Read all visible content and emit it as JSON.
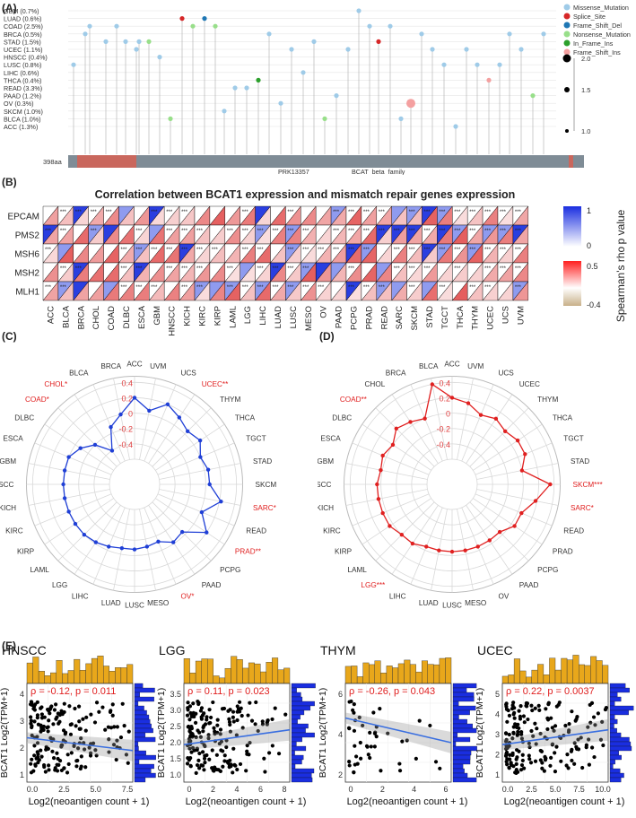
{
  "panels": {
    "A": {
      "label": "(A)",
      "cancers": [
        "GBM (0.7%)",
        "LUAD (0.6%)",
        "COAD (2.5%)",
        "BRCA (0.5%)",
        "STAD (1.5%)",
        "UCEC (1.1%)",
        "HNSCC (0.4%)",
        "LUSC (0.8%)",
        "LIHC (0.6%)",
        "THCA (0.4%)",
        "READ (3.3%)",
        "PAAD (1.2%)",
        "OV (0.3%)",
        "SKCM (1.0%)",
        "BLCA (1.0%)",
        "ACC (1.3%)"
      ],
      "legend": [
        {
          "label": "Missense_Mutation",
          "color": "#9fcbe8"
        },
        {
          "label": "Splice_Site",
          "color": "#d62728"
        },
        {
          "label": "Frame_Shift_Del",
          "color": "#1f77b4"
        },
        {
          "label": "Nonsense_Mutation",
          "color": "#98df8a"
        },
        {
          "label": "In_Frame_Ins",
          "color": "#2ca02c"
        },
        {
          "label": "Frame_Shift_Ins",
          "color": "#f4a0a0"
        }
      ],
      "size_legend": [
        "2.0",
        "1.5",
        "1.0"
      ],
      "protein_length": "398aa",
      "domains": [
        "PRK13357",
        "BCAT_beta_family"
      ]
    },
    "B": {
      "label": "(B)",
      "title": "Correlation between BCAT1 expression and mismatch repair genes expression",
      "genes": [
        "EPCAM",
        "PMS2",
        "MSH6",
        "MSH2",
        "MLH1"
      ],
      "cancers": [
        "ACC",
        "BLCA",
        "BRCA",
        "CHOL",
        "COAD",
        "DLBC",
        "ESCA",
        "GBM",
        "HNSCC",
        "KICH",
        "KIRC",
        "KIRP",
        "LAML",
        "LGG",
        "LIHC",
        "LUAD",
        "LUSC",
        "MESO",
        "OV",
        "PAAD",
        "PCPG",
        "PRAD",
        "READ",
        "SARC",
        "SKCM",
        "STAD",
        "TGCT",
        "THCA",
        "THYM",
        "UCEC",
        "UCS",
        "UVM"
      ],
      "pvalue_legend": {
        "title": "p value",
        "max": "1",
        "min": "0"
      },
      "rho_legend": {
        "title": "Spearman's rho",
        "max": "0.5",
        "min": "-0.4"
      },
      "stars_label": "***"
    },
    "C": {
      "label": "(C)",
      "rings": [
        "0.4",
        "0.2",
        "0",
        "-0.2",
        "-0.4"
      ],
      "axes": [
        {
          "name": "ACC",
          "red": false
        },
        {
          "name": "UVM",
          "red": false
        },
        {
          "name": "UCS",
          "red": false
        },
        {
          "name": "UCEC**",
          "red": true
        },
        {
          "name": "THYM",
          "red": false
        },
        {
          "name": "THCA",
          "red": false
        },
        {
          "name": "TGCT",
          "red": false
        },
        {
          "name": "STAD",
          "red": false
        },
        {
          "name": "SKCM",
          "red": false
        },
        {
          "name": "SARC*",
          "red": true
        },
        {
          "name": "READ",
          "red": false
        },
        {
          "name": "PRAD**",
          "red": true
        },
        {
          "name": "PCPG",
          "red": false
        },
        {
          "name": "PAAD",
          "red": false
        },
        {
          "name": "OV*",
          "red": true
        },
        {
          "name": "MESO",
          "red": false
        },
        {
          "name": "LUSC",
          "red": false
        },
        {
          "name": "LUAD",
          "red": false
        },
        {
          "name": "LIHC",
          "red": false
        },
        {
          "name": "LGG",
          "red": false
        },
        {
          "name": "LAML",
          "red": false
        },
        {
          "name": "KIRP",
          "red": false
        },
        {
          "name": "KIRC",
          "red": false
        },
        {
          "name": "KICH",
          "red": false
        },
        {
          "name": "HNSCC",
          "red": false
        },
        {
          "name": "GBM",
          "red": false
        },
        {
          "name": "ESCA",
          "red": false
        },
        {
          "name": "DLBC",
          "red": false
        },
        {
          "name": "COAD*",
          "red": true
        },
        {
          "name": "CHOL*",
          "red": true
        },
        {
          "name": "BLCA",
          "red": false
        },
        {
          "name": "BRCA",
          "red": false
        }
      ],
      "values": [
        0.2,
        0.05,
        0.2,
        0.12,
        0.05,
        0.1,
        0.0,
        0.05,
        0.05,
        0.22,
        0.02,
        0.2,
        -0.05,
        -0.02,
        -0.12,
        -0.1,
        -0.08,
        -0.08,
        -0.05,
        -0.02,
        0.0,
        0.0,
        0.0,
        0.0,
        0.0,
        0.0,
        0.0,
        -0.08,
        -0.2,
        -0.4,
        -0.12,
        0.0
      ],
      "color": "#1f3fd6"
    },
    "D": {
      "label": "(D)",
      "rings": [
        "0.4",
        "0.2",
        "0",
        "-0.2",
        "-0.4"
      ],
      "axes": [
        {
          "name": "ACC",
          "red": false
        },
        {
          "name": "UVM",
          "red": false
        },
        {
          "name": "UCS",
          "red": false
        },
        {
          "name": "UCEC",
          "red": false
        },
        {
          "name": "THYM",
          "red": false
        },
        {
          "name": "THCA",
          "red": false
        },
        {
          "name": "TGCT",
          "red": false
        },
        {
          "name": "STAD",
          "red": false
        },
        {
          "name": "SKCM***",
          "red": true
        },
        {
          "name": "SARC*",
          "red": true
        },
        {
          "name": "READ",
          "red": false
        },
        {
          "name": "PRAD",
          "red": false
        },
        {
          "name": "PCPG",
          "red": false
        },
        {
          "name": "PAAD",
          "red": false
        },
        {
          "name": "OV",
          "red": false
        },
        {
          "name": "MESO",
          "red": false
        },
        {
          "name": "LUSC",
          "red": false
        },
        {
          "name": "LUAD",
          "red": false
        },
        {
          "name": "LIHC",
          "red": false
        },
        {
          "name": "LGG***",
          "red": true
        },
        {
          "name": "LAML",
          "red": false
        },
        {
          "name": "KIRP",
          "red": false
        },
        {
          "name": "KIRC",
          "red": false
        },
        {
          "name": "KICH",
          "red": false
        },
        {
          "name": "HNSCC",
          "red": false
        },
        {
          "name": "GBM",
          "red": false
        },
        {
          "name": "ESCA",
          "red": false
        },
        {
          "name": "DLBC",
          "red": false
        },
        {
          "name": "COAD**",
          "red": true
        },
        {
          "name": "CHOL",
          "red": false
        },
        {
          "name": "BRCA",
          "red": false
        },
        {
          "name": "BLCA",
          "red": false
        }
      ],
      "values": [
        0.2,
        0.15,
        0.05,
        0.1,
        0.05,
        0.1,
        0.1,
        0.0,
        0.35,
        0.18,
        0.05,
        0.05,
        -0.05,
        -0.05,
        -0.05,
        -0.05,
        -0.05,
        -0.05,
        -0.05,
        0.0,
        0.0,
        0.05,
        0.05,
        0.05,
        0.05,
        0.02,
        0.05,
        0.0,
        0.1,
        0.05,
        0.0,
        0.4
      ],
      "color": "#e02020"
    },
    "E": {
      "label": "(E)",
      "plots": [
        {
          "title": "HNSCC",
          "stat": "ρ = -0.12, p = 0.011",
          "ylabel": "BCAT1 Log2(TPM+1)",
          "xlabel": "Log2(neoantigen count + 1)",
          "xticks": [
            "0.0",
            "2.5",
            "5.0",
            "7.5"
          ],
          "yticks": [
            "1",
            "2",
            "3",
            "4"
          ]
        },
        {
          "title": "LGG",
          "stat": "ρ = 0.11, p = 0.023",
          "ylabel": "BCAT1 Log2(TPM+1)",
          "xlabel": "Log2(neoantigen count + 1)",
          "xticks": [
            "0",
            "2",
            "4",
            "6",
            "8"
          ],
          "yticks": [
            "1.0",
            "1.5",
            "2.0",
            "2.5",
            "3.0",
            "3.5"
          ]
        },
        {
          "title": "THYM",
          "stat": "ρ = -0.26, p = 0.043",
          "ylabel": "BCAT1 Log2(TPM+1)",
          "xlabel": "Log2(neoantigen count + 1)",
          "xticks": [
            "0",
            "2",
            "4",
            "6"
          ],
          "yticks": [
            "2",
            "4",
            "6"
          ]
        },
        {
          "title": "UCEC",
          "stat": "ρ = 0.22, p = 0.0037",
          "ylabel": "BCAT1 Log2(TPM+1)",
          "xlabel": "Log2(neoantigen count + 1)",
          "xticks": [
            "0.0",
            "2.5",
            "5.0",
            "7.5",
            "10.0"
          ],
          "yticks": [
            "1",
            "2",
            "3",
            "4",
            "5"
          ]
        }
      ]
    }
  }
}
